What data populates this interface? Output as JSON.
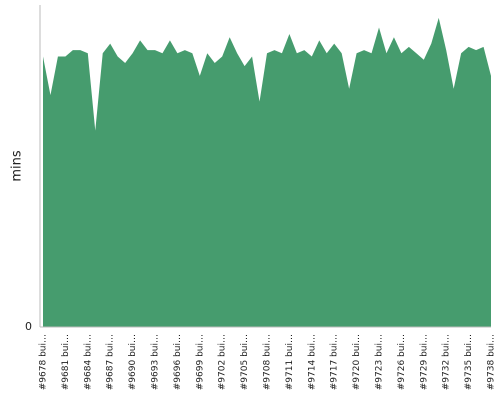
{
  "chart_data": {
    "type": "area",
    "y_label": "mins",
    "color": "#469c6e",
    "categories": [
      "#9678 bui…",
      null,
      null,
      "#9681 bui…",
      null,
      null,
      "#9684 bui…",
      null,
      null,
      "#9687 bui…",
      null,
      null,
      "#9690 bui…",
      null,
      null,
      "#9693 bui…",
      null,
      null,
      "#9696 bui…",
      null,
      null,
      "#9699 bui…",
      null,
      null,
      "#9702 bui…",
      null,
      null,
      "#9705 bui…",
      null,
      null,
      "#9708 bui…",
      null,
      null,
      "#9711 bui…",
      null,
      null,
      "#9714 bui…",
      null,
      null,
      "#9717 bui…",
      null,
      null,
      "#9720 bui…",
      null,
      null,
      "#9723 bui…",
      null,
      null,
      "#9726 bui…",
      null,
      null,
      "#9729 bui…",
      null,
      null,
      "#9732 bui…",
      null,
      null,
      "#9735 bui…",
      null,
      null,
      "#9738 bui…"
    ],
    "values": [
      84,
      72,
      84,
      84,
      86,
      86,
      85,
      61,
      85,
      88,
      84,
      82,
      85,
      89,
      86,
      86,
      85,
      89,
      85,
      86,
      85,
      78,
      85,
      82,
      84,
      90,
      85,
      81,
      84,
      70,
      85,
      86,
      85,
      91,
      85,
      86,
      84,
      89,
      85,
      88,
      85,
      74,
      85,
      86,
      85,
      93,
      85,
      90,
      85,
      87,
      85,
      83,
      88,
      96,
      86,
      74,
      85,
      87,
      86,
      87,
      78
    ],
    "ylim": [
      0,
      100
    ],
    "yticks": [
      0
    ]
  }
}
